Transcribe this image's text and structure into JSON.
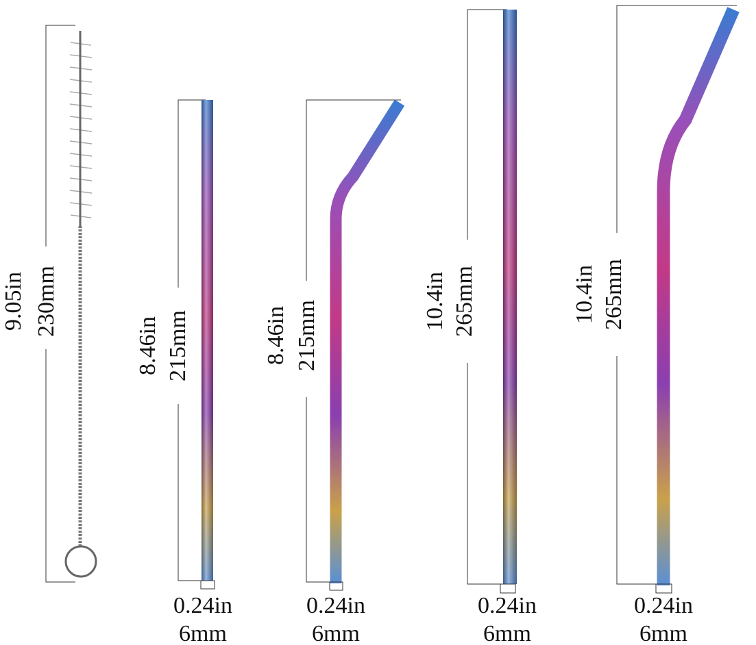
{
  "items": [
    {
      "length_in": "9.05in",
      "length_mm": "230mm"
    },
    {
      "length_in": "8.46in",
      "length_mm": "215mm",
      "width_in": "0.24in",
      "width_mm": "6mm"
    },
    {
      "length_in": "8.46in",
      "length_mm": "215mm",
      "width_in": "0.24in",
      "width_mm": "6mm"
    },
    {
      "length_in": "10.4in",
      "length_mm": "265mm",
      "width_in": "0.24in",
      "width_mm": "6mm"
    },
    {
      "length_in": "10.4in",
      "length_mm": "265mm",
      "width_in": "0.24in",
      "width_mm": "6mm"
    }
  ]
}
